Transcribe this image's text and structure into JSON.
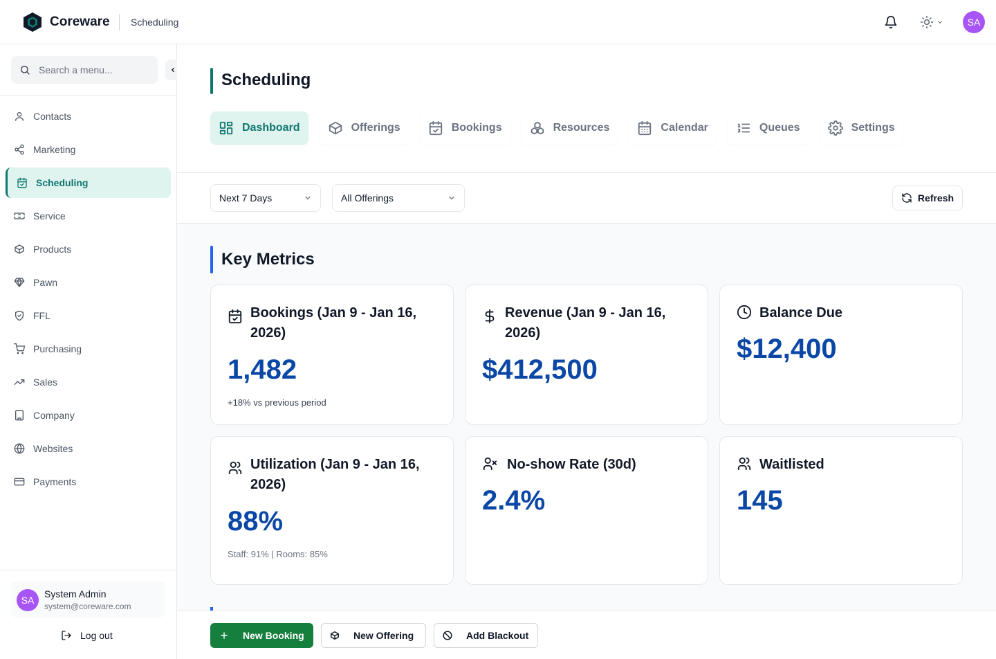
{
  "app": {
    "brand": "Coreware",
    "breadcrumb": "Scheduling",
    "user_initials": "SA"
  },
  "sidebar": {
    "search_placeholder": "Search a menu...",
    "items": [
      {
        "label": "Contacts",
        "icon": "user-icon"
      },
      {
        "label": "Marketing",
        "icon": "share-icon"
      },
      {
        "label": "Scheduling",
        "icon": "calendar-check-icon",
        "active": true
      },
      {
        "label": "Service",
        "icon": "ticket-icon"
      },
      {
        "label": "Products",
        "icon": "box-icon"
      },
      {
        "label": "Pawn",
        "icon": "gem-icon"
      },
      {
        "label": "FFL",
        "icon": "shield-icon"
      },
      {
        "label": "Purchasing",
        "icon": "cart-icon"
      },
      {
        "label": "Sales",
        "icon": "trend-up-icon"
      },
      {
        "label": "Company",
        "icon": "building-icon"
      },
      {
        "label": "Websites",
        "icon": "globe-icon"
      },
      {
        "label": "Payments",
        "icon": "credit-card-icon"
      }
    ],
    "user": {
      "initials": "SA",
      "name": "System Admin",
      "email": "system@coreware.com"
    },
    "logout_label": "Log out"
  },
  "page": {
    "title": "Scheduling",
    "tabs": [
      {
        "label": "Dashboard",
        "icon": "dashboard-grid-icon",
        "active": true
      },
      {
        "label": "Offerings",
        "icon": "box-icon"
      },
      {
        "label": "Bookings",
        "icon": "calendar-check-icon"
      },
      {
        "label": "Resources",
        "icon": "boxes-icon"
      },
      {
        "label": "Calendar",
        "icon": "calendar-icon"
      },
      {
        "label": "Queues",
        "icon": "list-ordered-icon"
      },
      {
        "label": "Settings",
        "icon": "gear-icon"
      }
    ]
  },
  "filters": {
    "range": "Next 7 Days",
    "offering": "All Offerings",
    "refresh_label": "Refresh"
  },
  "metrics": {
    "section_title": "Key Metrics",
    "cards": [
      {
        "label": "Bookings (Jan 9 - Jan 16, 2026)",
        "value": "1,482",
        "sub": "+18% vs previous period",
        "icon": "calendar-check-icon"
      },
      {
        "label": "Revenue (Jan 9 - Jan 16, 2026)",
        "value": "$412,500",
        "icon": "dollar-icon"
      },
      {
        "label": "Balance Due",
        "value": "$12,400",
        "icon": "clock-icon"
      },
      {
        "label": "Utilization (Jan 9 - Jan 16, 2026)",
        "value": "88%",
        "sub": "Staff: 91% | Rooms: 85%",
        "icon": "users-icon"
      },
      {
        "label": "No-show Rate (30d)",
        "value": "2.4%",
        "icon": "user-x-icon"
      },
      {
        "label": "Waitlisted",
        "value": "145",
        "icon": "users-icon"
      }
    ]
  },
  "actions": {
    "new_booking": "New Booking",
    "new_offering": "New Offering",
    "add_blackout": "Add Blackout"
  },
  "colors": {
    "accent": "#0f766e",
    "accent_bg": "#dff3ef",
    "metric_value": "#0b47a6",
    "primary_button": "#15803d",
    "avatar": "#a855f7"
  }
}
